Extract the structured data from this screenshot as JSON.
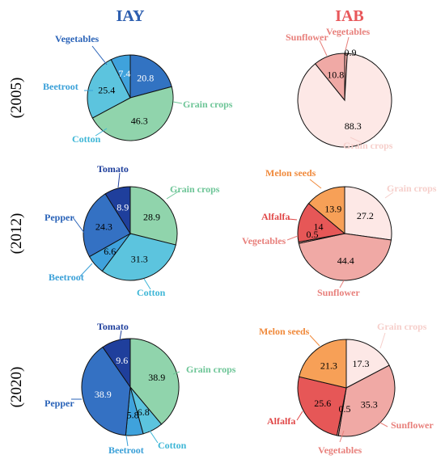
{
  "colors": {
    "vegetables_iay": "#3273c2",
    "grain_iay": "#90d4ac",
    "cotton": "#5cc4de",
    "beetroot": "#3fa2dc",
    "tomato": "#1f3f9c",
    "pepper": "#3471c3",
    "grain_iab": "#fde8e6",
    "sunflower": "#f0a9a5",
    "vegetables_iab": "#f2aba7",
    "alfalfa": "#e65757",
    "melon": "#f7a057",
    "iay_head": "#2e5fb0",
    "iab_head": "#e8575a"
  },
  "chart_data": [
    {
      "type": "pie",
      "col": "IAY",
      "row": "(2005)",
      "slices": [
        {
          "label": "Vegetables",
          "value": 20.8,
          "color": "#3273c2",
          "lcolor": "#2a63b8",
          "tcolor": "#ffffff"
        },
        {
          "label": "Grain crops",
          "value": 46.3,
          "color": "#90d4ac",
          "lcolor": "#6dc597",
          "tcolor": "#000000"
        },
        {
          "label": "Cotton",
          "value": 25.4,
          "color": "#5cc4de",
          "lcolor": "#3db6d6",
          "tcolor": "#000000"
        },
        {
          "label": "Beetroot",
          "value": 7.4,
          "color": "#3fa2dc",
          "lcolor": "#3aa0d8",
          "tcolor": "#ffffff"
        }
      ]
    },
    {
      "type": "pie",
      "col": "IAB",
      "row": "(2005)",
      "slices": [
        {
          "label": "Vegetables",
          "value": 0.9,
          "color": "#f2aba7",
          "lcolor": "#e8807c",
          "tcolor": "#000000"
        },
        {
          "label": "Grain crops",
          "value": 88.3,
          "color": "#fde8e6",
          "lcolor": "#f6cfcb",
          "tcolor": "#000000"
        },
        {
          "label": "Sunflower",
          "value": 10.8,
          "color": "#f0a9a5",
          "lcolor": "#e8807c",
          "tcolor": "#000000"
        }
      ]
    },
    {
      "type": "pie",
      "col": "IAY",
      "row": "(2012)",
      "slices": [
        {
          "label": "Grain crops",
          "value": 28.9,
          "color": "#90d4ac",
          "lcolor": "#6dc597",
          "tcolor": "#000000"
        },
        {
          "label": "Cotton",
          "value": 31.3,
          "color": "#5cc4de",
          "lcolor": "#3db6d6",
          "tcolor": "#000000"
        },
        {
          "label": "Beetroot",
          "value": 6.6,
          "color": "#3fa2dc",
          "lcolor": "#3aa0d8",
          "tcolor": "#000000"
        },
        {
          "label": "Pepper",
          "value": 24.3,
          "color": "#3471c3",
          "lcolor": "#2a63b8",
          "tcolor": "#000000"
        },
        {
          "label": "Tomato",
          "value": 8.9,
          "color": "#1f3f9c",
          "lcolor": "#1f3f9c",
          "tcolor": "#ffffff"
        }
      ]
    },
    {
      "type": "pie",
      "col": "IAB",
      "row": "(2012)",
      "slices": [
        {
          "label": "Grain crops",
          "value": 27.2,
          "color": "#fde8e6",
          "lcolor": "#f6cfcb",
          "tcolor": "#000000"
        },
        {
          "label": "Sunflower",
          "value": 44.4,
          "color": "#f0a9a5",
          "lcolor": "#e8807c",
          "tcolor": "#000000"
        },
        {
          "label": "Vegetables",
          "value": 0.5,
          "color": "#f2aba7",
          "lcolor": "#e8807c",
          "tcolor": "#000000"
        },
        {
          "label": "Alfalfa",
          "value": 14.0,
          "color": "#e65757",
          "lcolor": "#e04848",
          "tcolor": "#000000"
        },
        {
          "label": "Melon seeds",
          "value": 13.9,
          "color": "#f7a057",
          "lcolor": "#f08a3c",
          "tcolor": "#000000"
        }
      ]
    },
    {
      "type": "pie",
      "col": "IAY",
      "row": "(2020)",
      "slices": [
        {
          "label": "Grain crops",
          "value": 38.9,
          "color": "#90d4ac",
          "lcolor": "#6dc597",
          "tcolor": "#000000"
        },
        {
          "label": "Cotton",
          "value": 6.8,
          "color": "#5cc4de",
          "lcolor": "#3db6d6",
          "tcolor": "#000000"
        },
        {
          "label": "Beetroot",
          "value": 5.8,
          "color": "#3fa2dc",
          "lcolor": "#3aa0d8",
          "tcolor": "#000000"
        },
        {
          "label": "Pepper",
          "value": 38.9,
          "color": "#3471c3",
          "lcolor": "#2a63b8",
          "tcolor": "#ffffff"
        },
        {
          "label": "Tomato",
          "value": 9.6,
          "color": "#1f3f9c",
          "lcolor": "#1f3f9c",
          "tcolor": "#ffffff"
        }
      ]
    },
    {
      "type": "pie",
      "col": "IAB",
      "row": "(2020)",
      "slices": [
        {
          "label": "Grain crops",
          "value": 17.3,
          "color": "#fde8e6",
          "lcolor": "#f6cfcb",
          "tcolor": "#000000"
        },
        {
          "label": "Sunflower",
          "value": 35.3,
          "color": "#f0a9a5",
          "lcolor": "#e8807c",
          "tcolor": "#000000"
        },
        {
          "label": "Vegetables",
          "value": 0.5,
          "color": "#f2aba7",
          "lcolor": "#e8807c",
          "tcolor": "#000000"
        },
        {
          "label": "Alfalfa",
          "value": 25.6,
          "color": "#e65757",
          "lcolor": "#e04848",
          "tcolor": "#000000"
        },
        {
          "label": "Melon seeds",
          "value": 21.3,
          "color": "#f7a057",
          "lcolor": "#f08a3c",
          "tcolor": "#000000"
        }
      ]
    }
  ]
}
